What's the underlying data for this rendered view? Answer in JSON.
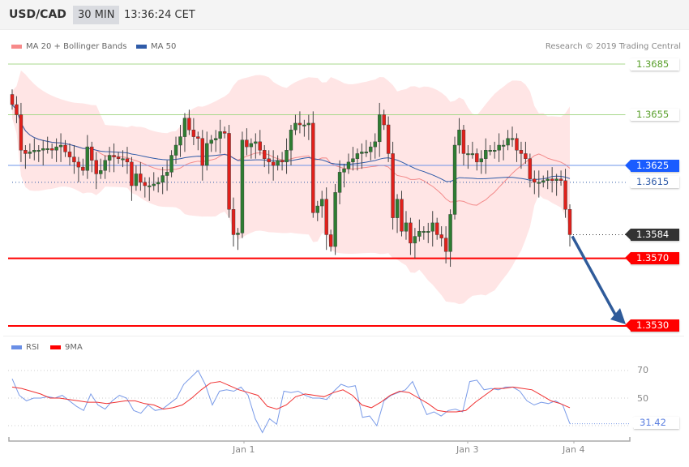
{
  "header": {
    "symbol": "USD/CAD",
    "timeframe": "30 MIN",
    "time": "13:36:24 CET"
  },
  "legend": {
    "bb": "MA 20 + Bollinger Bands",
    "ma50": "MA 50",
    "copyright": "Research © 2019 Trading Central",
    "rsi": "RSI",
    "ma9": "9MA"
  },
  "colors": {
    "up": "#2e7d32",
    "down": "#e0201b",
    "bb_fill": "#ffdede",
    "ma20": "#f38a8a",
    "ma50": "#2f5ba8",
    "resistance": "#a8d98c",
    "support": "#ff0000",
    "pivot": "#1a5cff",
    "arrow": "#2f5b9a",
    "rsi": "#7a9be8",
    "rsi_ma": "#f03030"
  },
  "levels": [
    {
      "value": "1.3685",
      "type": "resistance"
    },
    {
      "value": "1.3655",
      "type": "resistance"
    },
    {
      "value": "1.3625",
      "type": "pivot"
    },
    {
      "value": "1.3615",
      "type": "ref"
    },
    {
      "value": "1.3584",
      "type": "last"
    },
    {
      "value": "1.3570",
      "type": "support"
    },
    {
      "value": "1.3530",
      "type": "support"
    }
  ],
  "rsi_labels": {
    "r70": "70",
    "r50": "50",
    "last": "31.42"
  },
  "x_labels": [
    "Jan 1",
    "Jan 3",
    "Jan 4"
  ],
  "chart_data": {
    "type": "candlestick",
    "symbol": "USD/CAD",
    "ylim": [
      1.352,
      1.3695
    ],
    "closes": [
      1.3661,
      1.3655,
      1.3634,
      1.3632,
      1.3633,
      1.3634,
      1.3634,
      1.3635,
      1.3635,
      1.3634,
      1.3636,
      1.3637,
      1.3633,
      1.363,
      1.3627,
      1.3624,
      1.3622,
      1.3636,
      1.3628,
      1.362,
      1.3622,
      1.3628,
      1.3631,
      1.363,
      1.3629,
      1.3629,
      1.3627,
      1.3613,
      1.362,
      1.3615,
      1.3613,
      1.3613,
      1.3614,
      1.3615,
      1.3619,
      1.3621,
      1.3631,
      1.3637,
      1.3642,
      1.3653,
      1.3646,
      1.3642,
      1.3641,
      1.3625,
      1.3638,
      1.364,
      1.3641,
      1.3645,
      1.3644,
      1.3599,
      1.3584,
      1.3585,
      1.364,
      1.3636,
      1.3638,
      1.3639,
      1.3634,
      1.3629,
      1.3627,
      1.3625,
      1.3628,
      1.3627,
      1.3634,
      1.3646,
      1.365,
      1.3649,
      1.3649,
      1.365,
      1.3597,
      1.3601,
      1.3605,
      1.3584,
      1.3577,
      1.3609,
      1.3621,
      1.3623,
      1.3627,
      1.3629,
      1.3632,
      1.3633,
      1.3633,
      1.3636,
      1.3639,
      1.3655,
      1.3649,
      1.3632,
      1.3594,
      1.3605,
      1.3586,
      1.3591,
      1.3579,
      1.3583,
      1.3586,
      1.3586,
      1.3586,
      1.3591,
      1.3584,
      1.3582,
      1.3574,
      1.3596,
      1.3637,
      1.3646,
      1.3632,
      1.3632,
      1.3632,
      1.3627,
      1.3629,
      1.3634,
      1.3634,
      1.3634,
      1.3637,
      1.3637,
      1.3641,
      1.3641,
      1.3634,
      1.3632,
      1.3629,
      1.3617,
      1.3615,
      1.3615,
      1.3616,
      1.3617,
      1.3616,
      1.3617,
      1.3616,
      1.3599,
      1.3584
    ],
    "forecast": {
      "from": 1.3584,
      "to": 1.353
    },
    "rsi": [
      64,
      52,
      48,
      50,
      50,
      51,
      50,
      52,
      48,
      44,
      41,
      53,
      45,
      42,
      48,
      52,
      50,
      41,
      39,
      45,
      41,
      42,
      46,
      50,
      60,
      65,
      70,
      60,
      45,
      55,
      56,
      55,
      58,
      52,
      35,
      25,
      35,
      31,
      55,
      54,
      55,
      52,
      50,
      50,
      49,
      55,
      60,
      58,
      59,
      36,
      37,
      30,
      48,
      52,
      54,
      56,
      62,
      50,
      38,
      40,
      37,
      41,
      42,
      40,
      62,
      63,
      56,
      57,
      56,
      58,
      58,
      55,
      48,
      45,
      47,
      46,
      48,
      45,
      31.42
    ],
    "rsi_ma": [
      58,
      57,
      55,
      53,
      50,
      50,
      49,
      48,
      47,
      47,
      46,
      47,
      48,
      48,
      46,
      45,
      42,
      43,
      45,
      50,
      56,
      61,
      62,
      59,
      56,
      54,
      52,
      44,
      42,
      45,
      51,
      53,
      52,
      51,
      54,
      56,
      52,
      45,
      43,
      47,
      52,
      55,
      54,
      50,
      46,
      41,
      40,
      40,
      41,
      47,
      52,
      57,
      57,
      58,
      57,
      56,
      52,
      48,
      46,
      43
    ],
    "rsi_ylim": [
      20,
      80
    ]
  }
}
